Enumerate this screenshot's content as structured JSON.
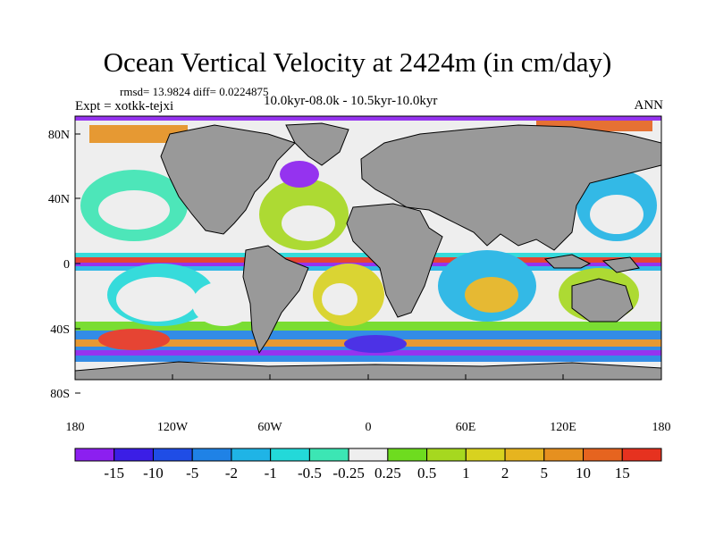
{
  "title": "Ocean Vertical Velocity at 2424m (in cm/day)",
  "stats": "rmsd= 13.9824 diff= 0.0224875",
  "experiment": "Expt = xotkk-tejxi",
  "period": "10.0kyr-08.0k - 10.5kyr-10.0kyr",
  "season": "ANN",
  "lat_labels": [
    "80N",
    "40N",
    "0",
    "40S",
    "80S"
  ],
  "lon_labels": [
    "180",
    "120W",
    "60W",
    "0",
    "60E",
    "120E",
    "180"
  ],
  "colorbar": {
    "colors": [
      "#8c1ff0",
      "#3b1ee6",
      "#1f4de6",
      "#1f82e6",
      "#1fb4e6",
      "#23d9d9",
      "#3ce6b4",
      "#eeeeee",
      "#6edc1f",
      "#a6d81f",
      "#d8d21f",
      "#e6b41f",
      "#e6901f",
      "#e6641f",
      "#e6321f"
    ],
    "labels": [
      "-15",
      "-10",
      "-5",
      "-2",
      "-1",
      "-0.5",
      "-0.25",
      "0.25",
      "0.5",
      "1",
      "2",
      "5",
      "10",
      "15"
    ]
  },
  "land_color": "#999999",
  "ocean_color": "#eeeeee"
}
